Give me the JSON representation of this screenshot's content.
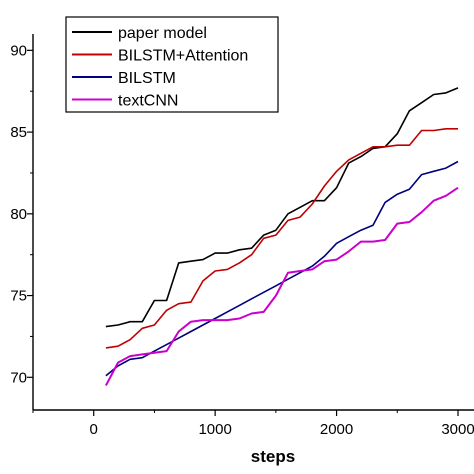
{
  "chart_data": {
    "type": "line",
    "title": "",
    "xlabel": "steps",
    "ylabel": "",
    "xlim": [
      -500,
      3000
    ],
    "ylim": [
      68,
      91
    ],
    "x_ticks": [
      0,
      1000,
      2000,
      3000
    ],
    "x_tick_labels": [
      "0",
      "1000",
      "2000",
      "3000"
    ],
    "y_ticks": [
      70,
      75,
      80,
      85,
      90
    ],
    "y_tick_labels": [
      "70",
      "75",
      "80",
      "85",
      "90"
    ],
    "grid": false,
    "legend_position": "top-left",
    "series": [
      {
        "name": "paper model",
        "color": "#000000",
        "x": [
          100,
          200,
          300,
          400,
          500,
          600,
          700,
          800,
          900,
          1000,
          1100,
          1200,
          1300,
          1400,
          1500,
          1600,
          1700,
          1800,
          1900,
          2000,
          2100,
          2200,
          2300,
          2400,
          2500,
          2600,
          2700,
          2800,
          2900,
          3000
        ],
        "y": [
          73.1,
          73.2,
          73.4,
          73.4,
          74.7,
          74.7,
          77.0,
          77.1,
          77.2,
          77.6,
          77.6,
          77.8,
          77.9,
          78.7,
          79.0,
          80.0,
          80.4,
          80.8,
          80.8,
          81.6,
          83.1,
          83.5,
          84.0,
          84.1,
          84.9,
          86.3,
          86.8,
          87.3,
          87.4,
          87.7
        ]
      },
      {
        "name": "BILSTM+Attention",
        "color": "#c00000",
        "x": [
          100,
          200,
          300,
          400,
          500,
          600,
          700,
          800,
          900,
          1000,
          1100,
          1200,
          1300,
          1400,
          1500,
          1600,
          1700,
          1800,
          1900,
          2000,
          2100,
          2200,
          2300,
          2400,
          2500,
          2600,
          2700,
          2800,
          2900,
          3000
        ],
        "y": [
          71.8,
          71.9,
          72.3,
          73.0,
          73.2,
          74.1,
          74.5,
          74.6,
          75.9,
          76.5,
          76.6,
          77.0,
          77.5,
          78.5,
          78.7,
          79.6,
          79.8,
          80.6,
          81.7,
          82.6,
          83.3,
          83.7,
          84.1,
          84.1,
          84.2,
          84.2,
          85.1,
          85.1,
          85.2,
          85.2
        ]
      },
      {
        "name": "BILSTM",
        "color": "#000080",
        "x": [
          100,
          200,
          300,
          400,
          500,
          600,
          700,
          800,
          900,
          1000,
          1100,
          1200,
          1300,
          1400,
          1500,
          1600,
          1700,
          1800,
          1900,
          2000,
          2100,
          2200,
          2300,
          2400,
          2500,
          2600,
          2700,
          2800,
          2900,
          3000
        ],
        "y": [
          70.1,
          70.7,
          71.1,
          71.2,
          71.6,
          72.0,
          72.4,
          72.8,
          73.2,
          73.6,
          74.0,
          74.4,
          74.8,
          75.2,
          75.6,
          76.0,
          76.4,
          76.8,
          77.4,
          78.2,
          78.6,
          79.0,
          79.3,
          80.7,
          81.2,
          81.5,
          82.4,
          82.6,
          82.8,
          83.2
        ]
      },
      {
        "name": "textCNN",
        "color": "#cc00cc",
        "x": [
          100,
          200,
          300,
          400,
          500,
          600,
          700,
          800,
          900,
          1000,
          1100,
          1200,
          1300,
          1400,
          1500,
          1600,
          1700,
          1800,
          1900,
          2000,
          2100,
          2200,
          2300,
          2400,
          2500,
          2600,
          2700,
          2800,
          2900,
          3000
        ],
        "y": [
          69.5,
          70.9,
          71.3,
          71.4,
          71.5,
          71.6,
          72.8,
          73.4,
          73.5,
          73.5,
          73.5,
          73.6,
          73.9,
          74.0,
          75.0,
          76.4,
          76.5,
          76.6,
          77.1,
          77.2,
          77.7,
          78.3,
          78.3,
          78.4,
          79.4,
          79.5,
          80.1,
          80.8,
          81.1,
          81.6
        ]
      }
    ]
  }
}
